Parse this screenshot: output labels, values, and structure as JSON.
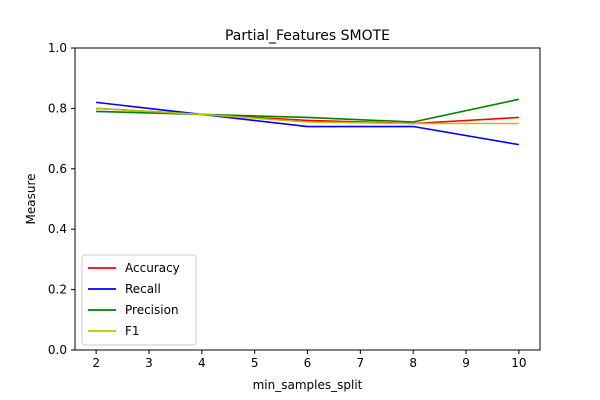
{
  "chart_data": {
    "type": "line",
    "title": "Partial_Features SMOTE",
    "xlabel": "min_samples_split",
    "ylabel": "Measure",
    "x": [
      2,
      4,
      6,
      8,
      10
    ],
    "xticks": [
      2,
      3,
      4,
      5,
      6,
      7,
      8,
      9,
      10
    ],
    "xtick_labels": [
      "2",
      "3",
      "4",
      "5",
      "6",
      "7",
      "8",
      "9",
      "10"
    ],
    "xlim": [
      1.6,
      10.4
    ],
    "ylim": [
      0.0,
      1.0
    ],
    "yticks": [
      0.0,
      0.2,
      0.4,
      0.6,
      0.8,
      1.0
    ],
    "ytick_labels": [
      "0.0",
      "0.2",
      "0.4",
      "0.6",
      "0.8",
      "1.0"
    ],
    "grid": false,
    "legend_position": "lower-left",
    "series": [
      {
        "name": "Accuracy",
        "color": "#ff0000",
        "values": [
          0.8,
          0.78,
          0.76,
          0.75,
          0.77
        ]
      },
      {
        "name": "Recall",
        "color": "#0000ff",
        "values": [
          0.82,
          0.78,
          0.74,
          0.74,
          0.68
        ]
      },
      {
        "name": "Precision",
        "color": "#008000",
        "values": [
          0.79,
          0.78,
          0.77,
          0.755,
          0.83
        ]
      },
      {
        "name": "F1",
        "color": "#bfbf00",
        "values": [
          0.8,
          0.78,
          0.755,
          0.75,
          0.75
        ]
      }
    ]
  }
}
